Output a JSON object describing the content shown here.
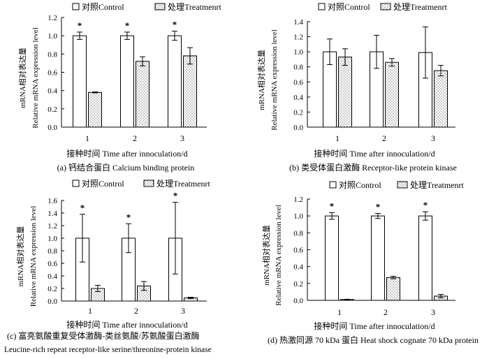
{
  "legend": {
    "control": "对照Control",
    "treatment": "处理Treatmenrt"
  },
  "ylabel_cn": "mRNA相对表达量",
  "ylabel_en": "Relative mRNA expression level",
  "xlabel": "接种时间 Time after innoculation/d",
  "chart_data": [
    {
      "type": "bar",
      "title": "(a) 钙结合蛋白 Calcium binding protein",
      "categories": [
        "1",
        "2",
        "3"
      ],
      "series": [
        {
          "name": "对照Control",
          "values": [
            1.0,
            1.0,
            1.0
          ],
          "errors": [
            0.04,
            0.04,
            0.05
          ]
        },
        {
          "name": "处理Treatmenrt",
          "values": [
            0.38,
            0.72,
            0.78
          ],
          "errors": [
            0.005,
            0.05,
            0.09
          ]
        }
      ],
      "significance": [
        "*",
        "*",
        "*"
      ],
      "ylim": [
        0,
        1.2
      ],
      "yticks": [
        "0.0",
        "0.2",
        "0.4",
        "0.6",
        "0.8",
        "1.0",
        "1.2"
      ]
    },
    {
      "type": "bar",
      "title": "(b) 类受体蛋白激酶 Receptor-like protein kinase",
      "categories": [
        "1",
        "2",
        "3"
      ],
      "series": [
        {
          "name": "对照Control",
          "values": [
            1.0,
            1.0,
            0.99
          ],
          "errors": [
            0.17,
            0.22,
            0.34
          ]
        },
        {
          "name": "处理Treatmenrt",
          "values": [
            0.93,
            0.86,
            0.75
          ],
          "errors": [
            0.11,
            0.05,
            0.07
          ]
        }
      ],
      "significance": [
        "",
        "",
        ""
      ],
      "ylim": [
        0,
        1.4
      ],
      "yticks": [
        "0.0",
        "0.2",
        "0.4",
        "0.6",
        "0.8",
        "1.0",
        "1.2",
        "1.4"
      ]
    },
    {
      "type": "bar",
      "title": "(c) 富亮氨酸重复受体激酶-类丝氨酸/苏氨酸蛋白激酶",
      "subtitle": "Leucine-rich repeat receptor-like serine/threonine-protein kinase",
      "categories": [
        "1",
        "2",
        "3"
      ],
      "series": [
        {
          "name": "对照Control",
          "values": [
            1.0,
            1.0,
            1.0
          ],
          "errors": [
            0.38,
            0.23,
            0.57
          ]
        },
        {
          "name": "处理Treatmenrt",
          "values": [
            0.2,
            0.24,
            0.05
          ],
          "errors": [
            0.05,
            0.07,
            0.01
          ]
        }
      ],
      "significance": [
        "*",
        "*",
        "*"
      ],
      "ylim": [
        0,
        1.6
      ],
      "yticks": [
        "0.0",
        "0.2",
        "0.4",
        "0.6",
        "0.8",
        "1.0",
        "1.2",
        "1.4",
        "1.6"
      ]
    },
    {
      "type": "bar",
      "title": "(d) 热激同源 70 kDa 蛋白 Heat shock cognate 70 kDa protein",
      "categories": [
        "1",
        "2",
        "3"
      ],
      "series": [
        {
          "name": "对照Control",
          "values": [
            1.0,
            1.0,
            1.0
          ],
          "errors": [
            0.04,
            0.03,
            0.05
          ]
        },
        {
          "name": "处理Treatmenrt",
          "values": [
            0.01,
            0.27,
            0.05
          ],
          "errors": [
            0.003,
            0.015,
            0.02
          ]
        }
      ],
      "significance": [
        "*",
        "*",
        "*"
      ],
      "ylim": [
        0,
        1.2
      ],
      "yticks": [
        "0.0",
        "0.2",
        "0.4",
        "0.6",
        "0.8",
        "1.0",
        "1.2"
      ]
    }
  ]
}
